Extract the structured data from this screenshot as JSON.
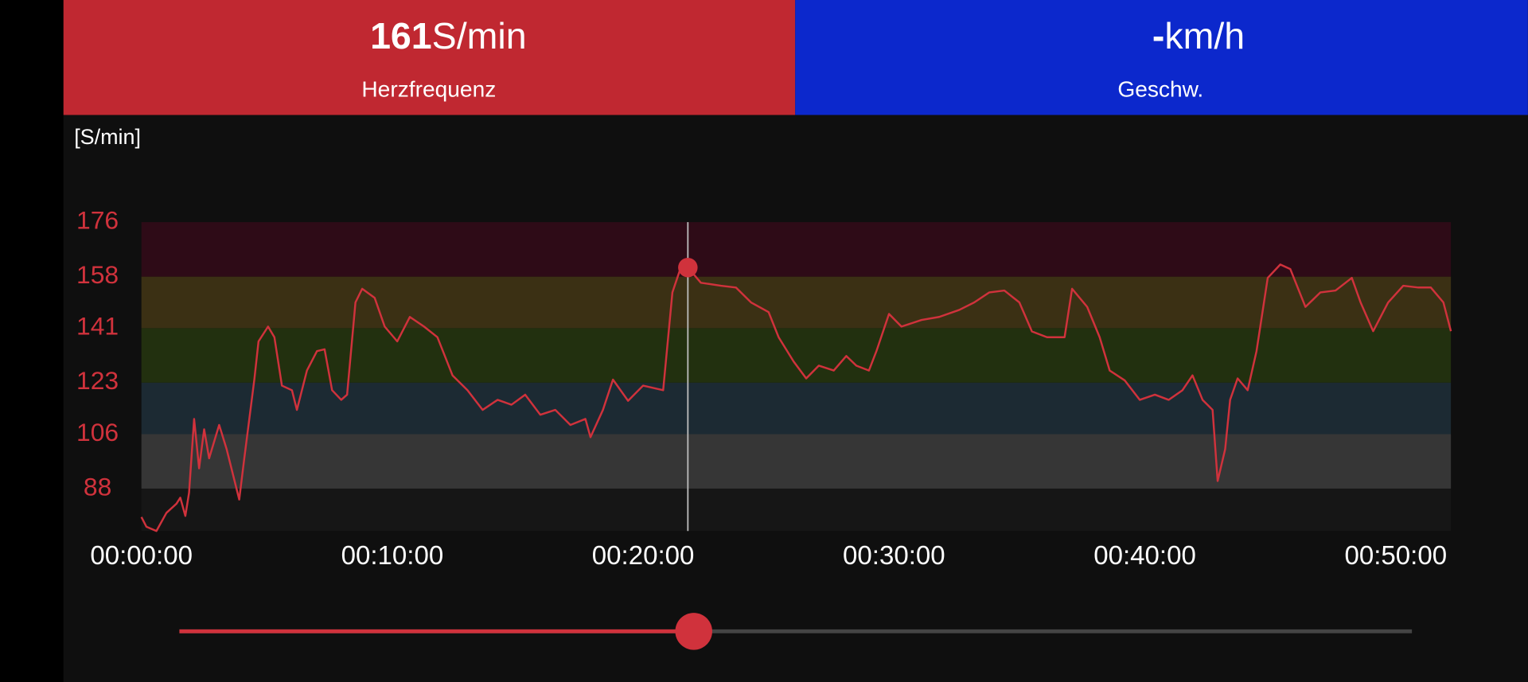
{
  "header": {
    "heart_rate": {
      "value": "161",
      "unit": "S/min",
      "label": "Herzfrequenz"
    },
    "speed": {
      "value": "-",
      "unit": "km/h",
      "label": "Geschw."
    }
  },
  "chart_data": {
    "type": "line",
    "y_label": "[S/min]",
    "x": [
      0,
      12,
      36,
      60,
      84,
      93,
      105,
      114,
      126,
      138,
      150,
      162,
      186,
      204,
      234,
      246,
      270,
      280,
      303,
      318,
      336,
      360,
      372,
      396,
      420,
      438,
      456,
      478,
      492,
      512,
      528,
      558,
      582,
      612,
      642,
      676,
      708,
      744,
      780,
      816,
      852,
      885,
      918,
      954,
      990,
      1026,
      1062,
      1074,
      1104,
      1128,
      1164,
      1200,
      1248,
      1270,
      1290,
      1307,
      1338,
      1386,
      1422,
      1458,
      1500,
      1524,
      1560,
      1590,
      1620,
      1656,
      1686,
      1710,
      1740,
      1758,
      1788,
      1818,
      1866,
      1908,
      1956,
      1992,
      2028,
      2064,
      2100,
      2130,
      2166,
      2208,
      2226,
      2262,
      2292,
      2316,
      2352,
      2388,
      2424,
      2457,
      2490,
      2514,
      2538,
      2562,
      2574,
      2592,
      2604,
      2622,
      2646,
      2667,
      2694,
      2724,
      2748,
      2784,
      2820,
      2856,
      2895,
      2916,
      2946,
      2982,
      3018,
      3054,
      3084,
      3114,
      3132
    ],
    "series": [
      {
        "color": "#d0323c",
        "values": [
          78.6,
          75.4,
          74,
          80,
          83,
          85,
          79,
          86.6,
          111,
          94.7,
          107.6,
          98,
          109,
          101,
          84.4,
          98,
          124,
          136.6,
          141.5,
          138,
          122,
          120.5,
          114,
          127,
          133.4,
          134,
          120.5,
          117.3,
          119,
          149.5,
          154,
          151,
          141.5,
          136.6,
          144.7,
          141.5,
          138,
          125.4,
          120.5,
          114,
          117.3,
          115.7,
          119,
          112.4,
          114,
          109,
          111,
          105,
          114,
          124,
          117,
          122,
          120.5,
          152.8,
          161,
          161,
          156,
          155,
          154.4,
          149.5,
          146.3,
          138,
          130,
          124.4,
          128.6,
          127,
          131.8,
          128.6,
          127,
          133.4,
          145.7,
          141.5,
          143.7,
          144.7,
          147,
          149.5,
          152.8,
          153.4,
          149.5,
          139.9,
          138,
          138,
          154,
          148,
          138,
          127,
          123.7,
          117.3,
          119,
          117.3,
          120.5,
          125.4,
          117.3,
          114,
          90.5,
          101,
          117.3,
          124.4,
          120.5,
          133.4,
          157.6,
          162,
          160.5,
          148,
          152.8,
          153.4,
          157.6,
          149.5,
          140,
          149.5,
          155,
          154.4,
          154.4,
          149.5,
          140
        ]
      }
    ],
    "xlim": [
      0,
      3132
    ],
    "ylim": [
      74,
      176
    ],
    "xticks": [
      {
        "value": 0,
        "label": "00:00:00"
      },
      {
        "value": 600,
        "label": "00:10:00"
      },
      {
        "value": 1200,
        "label": "00:20:00"
      },
      {
        "value": 1800,
        "label": "00:30:00"
      },
      {
        "value": 2400,
        "label": "00:40:00"
      },
      {
        "value": 3000,
        "label": "00:50:00"
      }
    ],
    "yticks": [
      88,
      106,
      123,
      141,
      158,
      176
    ],
    "zone_colors": [
      "#161616",
      "#363636",
      "#1c2a33",
      "#22300f",
      "#3b3014",
      "#2e0b17"
    ],
    "cursor": {
      "x": 1307,
      "value": 161
    }
  }
}
